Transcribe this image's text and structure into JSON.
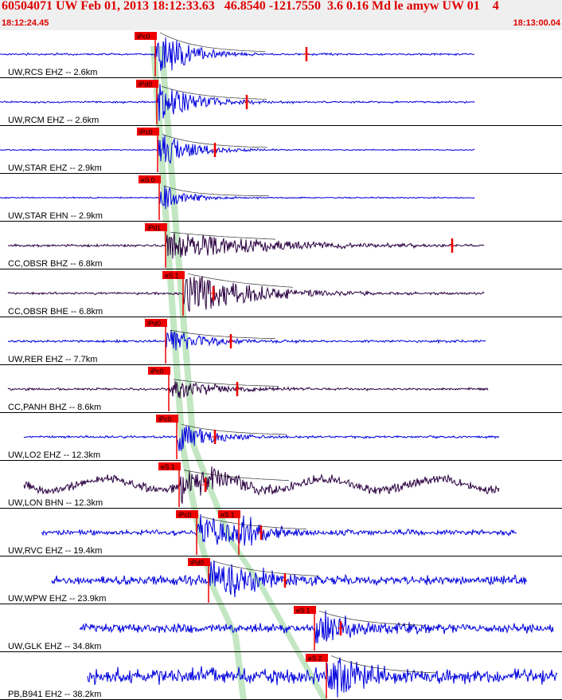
{
  "header": {
    "title": "60504071 UW Feb 01, 2013 18:12:33.63   46.8540 -121.7550  3.6 0.16 Md le amyw UW 01    4",
    "start_time": "18:12:24.45",
    "end_time": "18:13:00.04"
  },
  "colors": {
    "header_bg": "#efefef",
    "header_text": "#dd0000",
    "trace_blue": "#0000dd",
    "trace_dark": "#2a0040",
    "pick_red": "#ee0000",
    "band_green": "#b7e3b7"
  },
  "traces": [
    {
      "label": "UW,RCS EHZ -- 2.6km",
      "pick": "iPc0",
      "color": "blue"
    },
    {
      "label": "UW,RCM EHZ -- 2.6km",
      "pick": "iPd0",
      "color": "blue"
    },
    {
      "label": "UW,STAR EHZ -- 2.9km",
      "pick": "iPc0",
      "color": "blue"
    },
    {
      "label": "UW,STAR EHN -- 2.9km",
      "pick": "eS 0",
      "color": "blue"
    },
    {
      "label": "CC,OBSR BHZ -- 6.8km",
      "pick": "iPd1",
      "color": "dark"
    },
    {
      "label": "CC,OBSR BHE -- 6.8km",
      "pick": "eS 1",
      "color": "dark"
    },
    {
      "label": "UW,RER EHZ -- 7.7km",
      "pick": "iPd0",
      "color": "blue"
    },
    {
      "label": "CC,PANH BHZ -- 8.6km",
      "pick": "iPc0",
      "color": "dark"
    },
    {
      "label": "UW,LO2 EHZ -- 12.3km",
      "pick": "iPc0",
      "color": "blue"
    },
    {
      "label": "UW,LON BHN -- 12.3km",
      "pick": "eS 1",
      "color": "dark"
    },
    {
      "label": "UW,RVC EHZ -- 19.4km",
      "pick": "iPc0",
      "pick2": "eS 1",
      "color": "blue"
    },
    {
      "label": "UW,WPW EHZ -- 23.9km",
      "pick": "iPd0",
      "color": "blue"
    },
    {
      "label": "UW,GLK EHZ -- 34.8km",
      "pick": "eS 1",
      "color": "blue"
    },
    {
      "label": "PB,B941 EH2 -- 38.2km",
      "pick": "eS 2",
      "color": "blue"
    }
  ]
}
